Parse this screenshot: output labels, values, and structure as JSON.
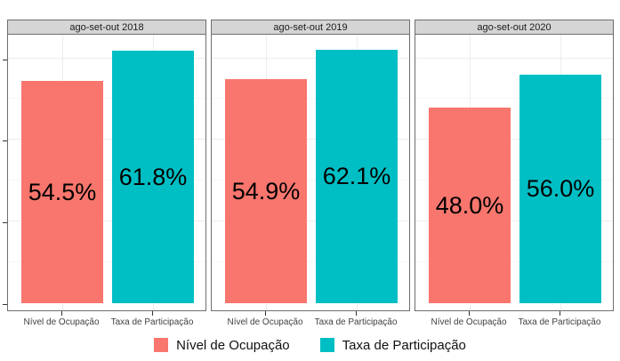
{
  "chart_data": {
    "type": "bar",
    "faceted": true,
    "categories": [
      "Nível de Ocupação",
      "Taxa de Participação"
    ],
    "facets": [
      {
        "label": "ago-set-out 2018",
        "values": [
          54.5,
          61.8
        ],
        "value_labels": [
          "54.5%",
          "61.8%"
        ]
      },
      {
        "label": "ago-set-out 2019",
        "values": [
          54.9,
          62.1
        ],
        "value_labels": [
          "54.9%",
          "62.1%"
        ]
      },
      {
        "label": "ago-set-out 2020",
        "values": [
          48.0,
          56.0
        ],
        "value_labels": [
          "48.0%",
          "56.0%"
        ]
      }
    ],
    "series": [
      {
        "name": "Nível de Ocupação",
        "color": "#F8766D",
        "values": [
          54.5,
          54.9,
          48.0
        ]
      },
      {
        "name": "Taxa de Participação",
        "color": "#00BFC4",
        "values": [
          61.8,
          62.1,
          56.0
        ]
      }
    ],
    "series_colors": [
      "#F8766D",
      "#00BFC4"
    ],
    "unit": "%",
    "ylim": [
      0,
      66
    ],
    "yticks": [
      0,
      20,
      40,
      60
    ],
    "gridlines": {
      "major": [
        20,
        40,
        60
      ],
      "minor": [
        10,
        30,
        50
      ]
    },
    "grid": true,
    "legend_position": "bottom",
    "legend": [
      {
        "label": "Nível de Ocupação",
        "color": "#F8766D"
      },
      {
        "label": "Taxa de Participação",
        "color": "#00BFC4"
      }
    ]
  },
  "colors": {
    "panel_border": "#6e6e6e",
    "strip_background": "#d5d5d5",
    "background": "#ffffff",
    "value_label_text": "#000000",
    "axis_text": "#404040"
  }
}
